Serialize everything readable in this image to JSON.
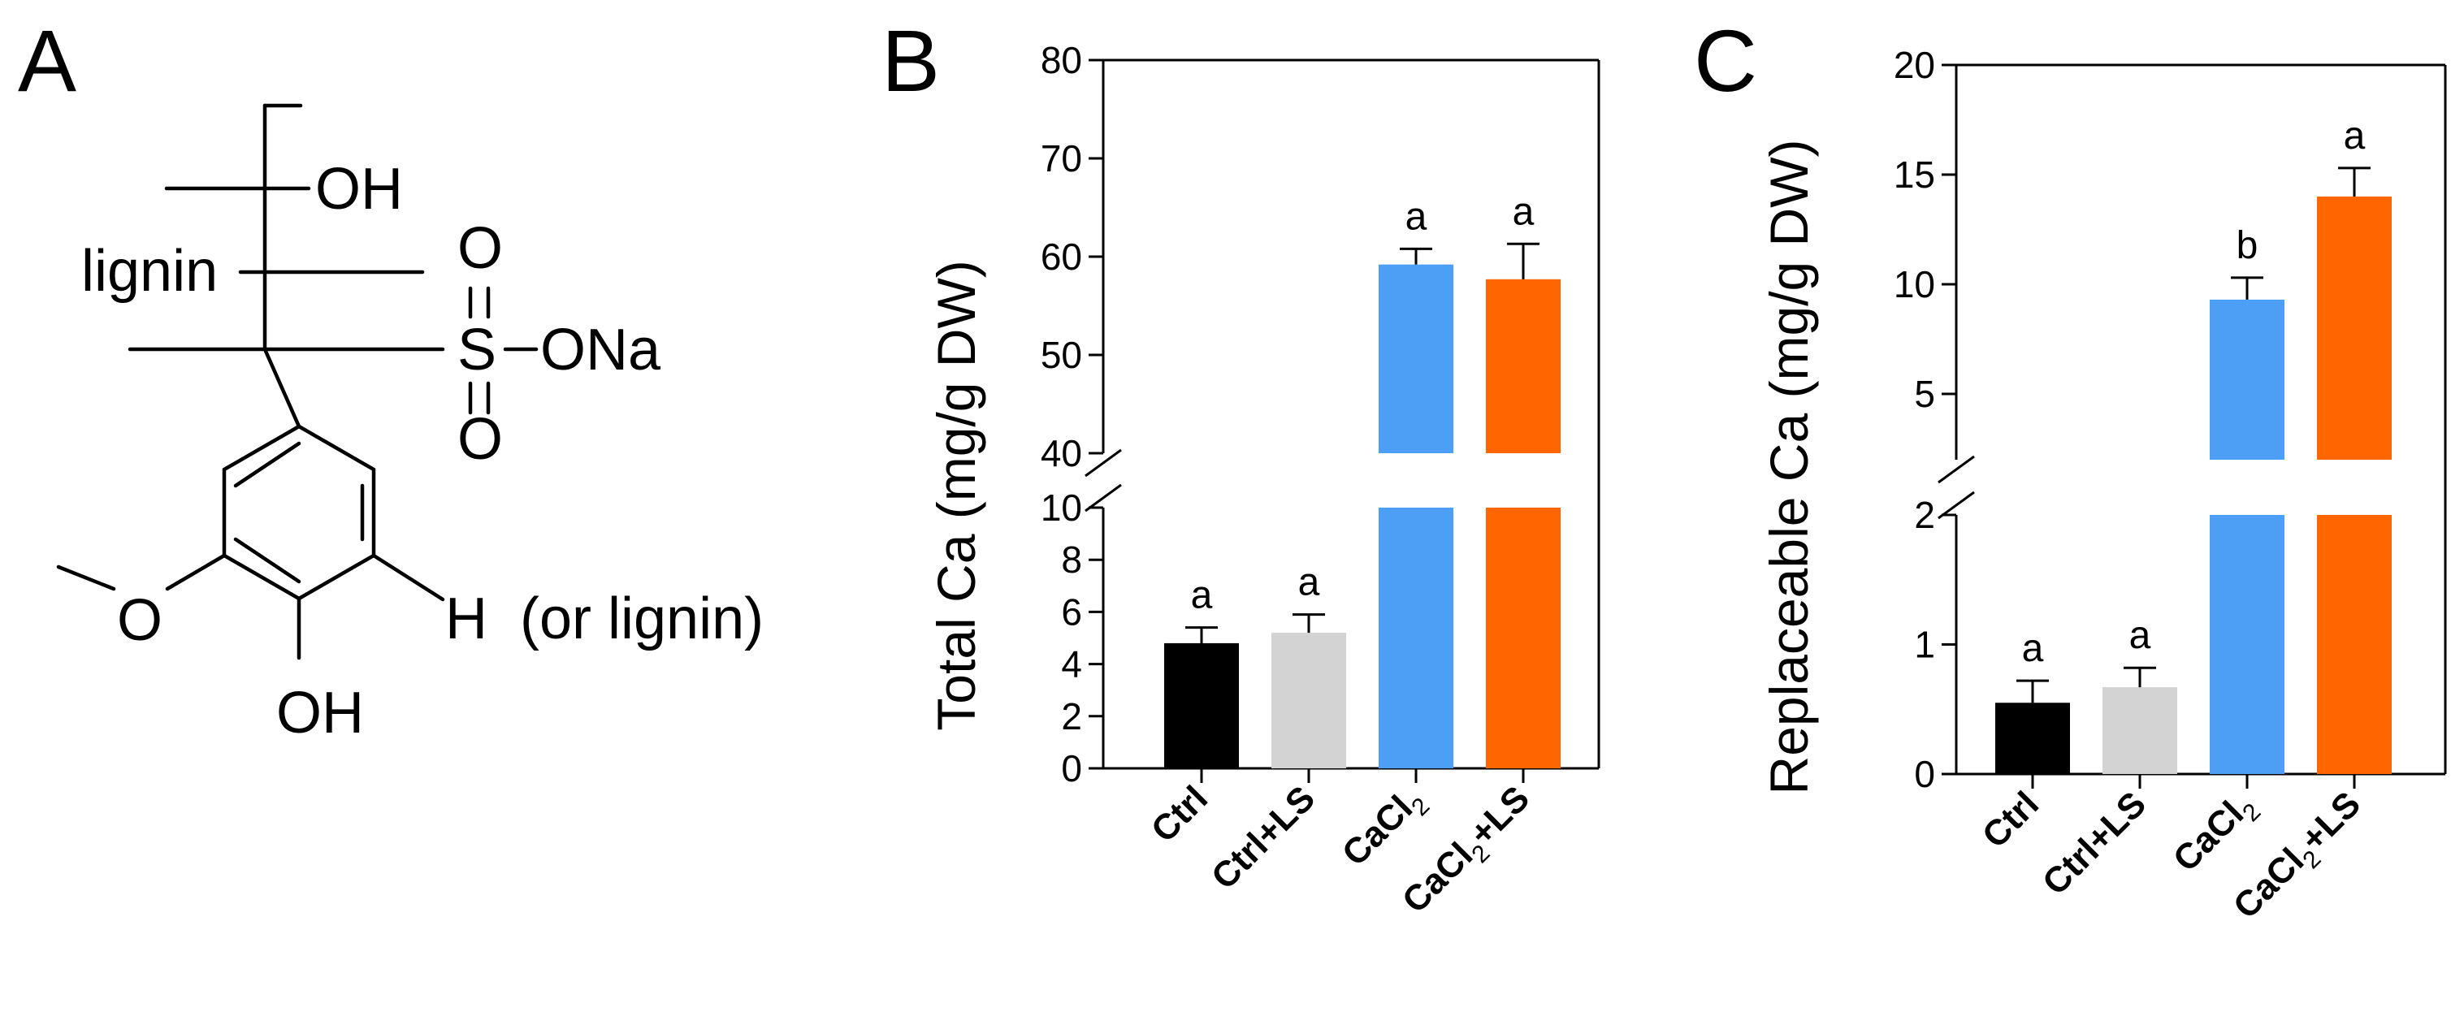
{
  "panels": {
    "A": "A",
    "B": "B",
    "C": "C"
  },
  "structure": {
    "oh_top": "OH",
    "lignin": "lignin",
    "o_top": "O",
    "s": "S",
    "ona": "ONa",
    "o_bottom": "O",
    "methoxy_o": "O",
    "h": "H",
    "or_lignin": "(or lignin)",
    "oh_bottom": "OH"
  },
  "colors": {
    "Ctrl": "#000000",
    "Ctrl+LS": "#d3d3d3",
    "CaCl2": "#4d9ff6",
    "CaCl2+LS": "#ff6600"
  },
  "chart_data": [
    {
      "type": "bar",
      "panel": "B",
      "ylabel": "Total Ca (mg/g DW)",
      "categories": [
        "Ctrl",
        "Ctrl+LS",
        "CaCl2",
        "CaCl2+LS"
      ],
      "category_labels": [
        {
          "main": "Ctrl",
          "sub": "",
          "tail": ""
        },
        {
          "main": "Ctrl+LS",
          "sub": "",
          "tail": ""
        },
        {
          "main": "CaCl",
          "sub": "2",
          "tail": ""
        },
        {
          "main": "CaCl",
          "sub": "2",
          "tail": "+LS"
        }
      ],
      "values": [
        4.8,
        5.2,
        59.2,
        57.7
      ],
      "errors": [
        0.6,
        0.7,
        1.6,
        3.6
      ],
      "letters": [
        "a",
        "a",
        "a",
        "a"
      ],
      "broken_axis": {
        "lower": {
          "range": [
            0,
            10
          ],
          "ticks": [
            0,
            2,
            4,
            6,
            8,
            10
          ],
          "tick_labels": [
            "0",
            "2",
            "4",
            "6",
            "8",
            "10"
          ]
        },
        "upper": {
          "range": [
            40,
            80
          ],
          "ticks": [
            40,
            50,
            60,
            70,
            80
          ],
          "tick_labels": [
            "40",
            "50",
            "60",
            "70",
            "80"
          ]
        }
      }
    },
    {
      "type": "bar",
      "panel": "C",
      "ylabel": "Replaceable Ca (mg/g DW)",
      "categories": [
        "Ctrl",
        "Ctrl+LS",
        "CaCl2",
        "CaCl2+LS"
      ],
      "category_labels": [
        {
          "main": "Ctrl",
          "sub": "",
          "tail": ""
        },
        {
          "main": "Ctrl+LS",
          "sub": "",
          "tail": ""
        },
        {
          "main": "CaCl",
          "sub": "2",
          "tail": ""
        },
        {
          "main": "CaCl",
          "sub": "2",
          "tail": "+LS"
        }
      ],
      "values": [
        0.55,
        0.67,
        9.3,
        14.0
      ],
      "errors": [
        0.17,
        0.15,
        1.0,
        1.3
      ],
      "letters": [
        "a",
        "a",
        "b",
        "a"
      ],
      "broken_axis": {
        "lower": {
          "range": [
            0,
            2
          ],
          "ticks": [
            0,
            1,
            2
          ],
          "tick_labels": [
            "0",
            "1",
            "2"
          ]
        },
        "upper": {
          "range": [
            2,
            20
          ],
          "ticks": [
            5,
            10,
            15,
            20
          ],
          "tick_labels": [
            "5",
            "10",
            "15",
            "20"
          ]
        }
      }
    }
  ]
}
